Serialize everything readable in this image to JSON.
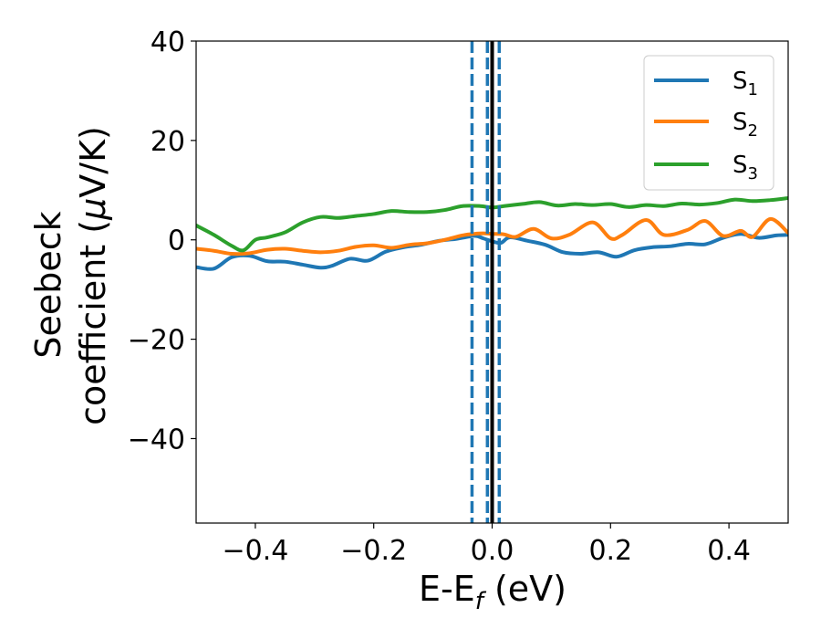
{
  "chart_data": {
    "type": "line",
    "title": "",
    "xlabel": "E-E",
    "xlabel_sub": "f",
    "xlabel_unit": " (eV)",
    "ylabel_line1": "Seebeck",
    "ylabel_line2_prefix": "coefficient  (",
    "ylabel_mu": "μ",
    "ylabel_line2_suffix": "V/K)",
    "xlim": [
      -0.5,
      0.5
    ],
    "ylim": [
      -57,
      40
    ],
    "xticks": [
      -0.4,
      -0.2,
      0.0,
      0.2,
      0.4
    ],
    "xtick_labels": [
      "−0.4",
      "−0.2",
      "0.0",
      "0.2",
      "0.4"
    ],
    "yticks": [
      40,
      20,
      0,
      -20,
      -40
    ],
    "ytick_labels": [
      "40",
      "20",
      "0",
      "−20",
      "−40"
    ],
    "grid": false,
    "legend_position": "top-right",
    "series": [
      {
        "name": "S",
        "sub": "1",
        "color": "#1f77b4",
        "x": [
          -0.5,
          -0.47,
          -0.44,
          -0.41,
          -0.38,
          -0.35,
          -0.32,
          -0.29,
          -0.27,
          -0.24,
          -0.21,
          -0.18,
          -0.15,
          -0.12,
          -0.09,
          -0.06,
          -0.03,
          -0.015,
          0.0,
          0.015,
          0.03,
          0.06,
          0.09,
          0.12,
          0.15,
          0.18,
          0.21,
          0.24,
          0.27,
          0.3,
          0.33,
          0.36,
          0.39,
          0.42,
          0.45,
          0.48,
          0.5
        ],
        "y": [
          -5.5,
          -5.8,
          -3.5,
          -3.2,
          -4.3,
          -4.4,
          -5.0,
          -5.6,
          -5.2,
          -3.8,
          -4.2,
          -2.4,
          -1.5,
          -1.0,
          -0.2,
          0.2,
          0.8,
          0.3,
          -0.3,
          -0.6,
          0.5,
          -0.2,
          -1.0,
          -2.5,
          -2.8,
          -2.5,
          -3.4,
          -2.1,
          -1.5,
          -1.3,
          -0.8,
          -0.9,
          0.4,
          1.2,
          0.4,
          0.9,
          1.0
        ]
      },
      {
        "name": "S",
        "sub": "2",
        "color": "#ff7f0e",
        "x": [
          -0.5,
          -0.47,
          -0.44,
          -0.41,
          -0.38,
          -0.35,
          -0.32,
          -0.29,
          -0.26,
          -0.23,
          -0.2,
          -0.17,
          -0.14,
          -0.11,
          -0.08,
          -0.05,
          -0.03,
          -0.015,
          0.0,
          0.02,
          0.04,
          0.07,
          0.1,
          0.13,
          0.17,
          0.2,
          0.22,
          0.26,
          0.29,
          0.33,
          0.36,
          0.39,
          0.42,
          0.44,
          0.47,
          0.5
        ],
        "y": [
          -1.8,
          -2.2,
          -2.8,
          -2.7,
          -2.0,
          -1.8,
          -2.2,
          -2.5,
          -2.2,
          -1.4,
          -1.1,
          -1.6,
          -1.0,
          -0.7,
          0.0,
          0.9,
          1.2,
          1.3,
          1.2,
          1.1,
          0.6,
          2.2,
          0.3,
          1.0,
          3.5,
          0.3,
          1.0,
          4.0,
          1.0,
          2.0,
          3.8,
          0.8,
          1.8,
          0.6,
          4.2,
          1.4
        ]
      },
      {
        "name": "S",
        "sub": "3",
        "color": "#2ca02c",
        "x": [
          -0.5,
          -0.47,
          -0.44,
          -0.42,
          -0.4,
          -0.38,
          -0.35,
          -0.32,
          -0.29,
          -0.26,
          -0.23,
          -0.2,
          -0.17,
          -0.14,
          -0.11,
          -0.08,
          -0.05,
          -0.02,
          0.0,
          0.02,
          0.05,
          0.08,
          0.11,
          0.14,
          0.17,
          0.2,
          0.23,
          0.26,
          0.29,
          0.32,
          0.35,
          0.38,
          0.41,
          0.44,
          0.47,
          0.5
        ],
        "y": [
          2.9,
          1.0,
          -1.2,
          -2.1,
          0.0,
          0.5,
          1.5,
          3.5,
          4.6,
          4.4,
          4.8,
          5.2,
          5.8,
          5.6,
          5.6,
          6.0,
          6.8,
          6.8,
          6.5,
          6.8,
          7.2,
          7.6,
          6.9,
          7.2,
          7.0,
          7.2,
          6.6,
          7.0,
          6.8,
          7.3,
          7.1,
          7.4,
          8.1,
          7.8,
          8.0,
          8.4
        ]
      }
    ],
    "vlines": [
      {
        "x": -0.034,
        "color": "#1f77b4",
        "style": "dashed"
      },
      {
        "x": -0.008,
        "color": "#1f77b4",
        "style": "dashed"
      },
      {
        "x": 0.012,
        "color": "#1f77b4",
        "style": "dashed"
      },
      {
        "x": 0.0,
        "color": "#000000",
        "style": "solid"
      }
    ]
  }
}
